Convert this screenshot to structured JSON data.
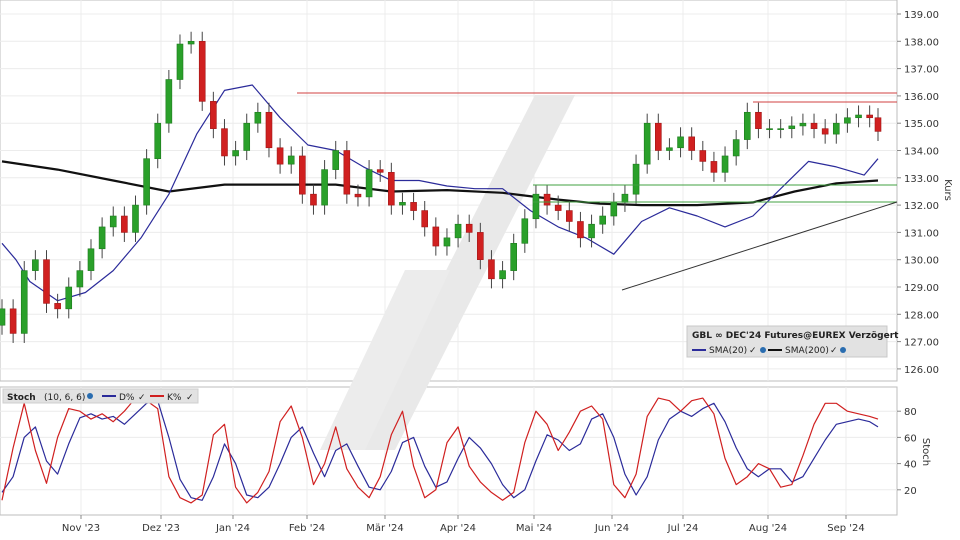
{
  "chart_data": [
    {
      "panel": "price",
      "type": "candlestick",
      "ylabel": "Kurs",
      "ylim": [
        125.5,
        139.5
      ],
      "yticks": [
        "126.00",
        "127.00",
        "128.00",
        "129.00",
        "130.00",
        "131.00",
        "132.00",
        "133.00",
        "134.00",
        "135.00",
        "136.00",
        "137.00",
        "138.00",
        "139.00"
      ],
      "xlabels": [
        "Nov '23",
        "Dez '23",
        "Jan '24",
        "Feb '24",
        "Mär '24",
        "Apr '24",
        "Mai '24",
        "Jun '24",
        "Jul '24",
        "Aug '24",
        "Sep '24"
      ],
      "legend": {
        "title": "GBL  ∞ DEC'24 Futures@EUREX Verzögert",
        "sma20": "SMA(20)",
        "sma200": "SMA(200)"
      },
      "series": [
        {
          "name": "SMA(20)",
          "color": "#2b2b9a",
          "x": [
            0,
            5,
            10,
            20,
            30,
            40,
            50,
            60,
            70,
            80,
            90,
            100,
            110,
            120,
            130,
            140,
            150,
            160,
            170,
            180,
            190,
            200,
            210,
            220,
            230,
            240,
            250,
            260,
            270,
            280,
            290,
            300,
            310,
            315
          ],
          "values": [
            130.6,
            130.0,
            129.2,
            128.5,
            128.8,
            129.6,
            130.8,
            132.4,
            134.6,
            136.2,
            136.4,
            135.2,
            134.2,
            134.0,
            133.4,
            132.9,
            132.9,
            132.7,
            132.6,
            132.6,
            131.8,
            131.2,
            130.8,
            130.2,
            131.4,
            131.9,
            131.6,
            131.2,
            131.6,
            132.6,
            133.6,
            133.4,
            133.1,
            133.7
          ]
        },
        {
          "name": "SMA(200)",
          "color": "#111111",
          "x": [
            0,
            20,
            40,
            60,
            80,
            100,
            120,
            140,
            160,
            180,
            200,
            215,
            230,
            250,
            270,
            285,
            300,
            315
          ],
          "values": [
            133.6,
            133.3,
            132.9,
            132.5,
            132.75,
            132.75,
            132.75,
            132.5,
            132.55,
            132.45,
            132.2,
            132.05,
            132.0,
            132.0,
            132.1,
            132.5,
            132.8,
            132.9
          ]
        }
      ],
      "candles_close_x": [
        0,
        4,
        8,
        12,
        16,
        20,
        24,
        28,
        32,
        36,
        40,
        44,
        48,
        52,
        56,
        60,
        64,
        68,
        72,
        76,
        80,
        84,
        88,
        92,
        96,
        100,
        104,
        108,
        112,
        116,
        120,
        124,
        128,
        132,
        136,
        140,
        144,
        148,
        152,
        156,
        160,
        164,
        168,
        172,
        176,
        180,
        184,
        188,
        192,
        196,
        200,
        204,
        208,
        212,
        216,
        220,
        224,
        228,
        232,
        236,
        240,
        244,
        248,
        252,
        256,
        260,
        264,
        268,
        272,
        276,
        280,
        284,
        288,
        292,
        296,
        300,
        304,
        308,
        312,
        315
      ],
      "candles_close": [
        128.2,
        127.3,
        129.6,
        130.0,
        128.4,
        128.2,
        129.0,
        129.6,
        130.4,
        131.2,
        131.6,
        131.0,
        132.0,
        133.7,
        135.0,
        136.6,
        137.9,
        138.0,
        135.8,
        134.8,
        133.8,
        134.0,
        135.0,
        135.4,
        134.1,
        133.5,
        133.8,
        132.4,
        132.0,
        133.3,
        134.0,
        132.4,
        132.3,
        133.3,
        133.2,
        132.0,
        132.1,
        131.8,
        131.2,
        130.5,
        130.8,
        131.3,
        131.0,
        130.0,
        129.3,
        129.6,
        130.6,
        131.5,
        132.4,
        132.0,
        131.8,
        131.4,
        130.8,
        131.3,
        131.6,
        132.1,
        132.4,
        133.5,
        135.0,
        134.0,
        134.1,
        134.5,
        134.0,
        133.6,
        133.2,
        133.8,
        134.4,
        135.4,
        134.8,
        134.8,
        134.8,
        134.9,
        135.0,
        134.8,
        134.6,
        135.0,
        135.2,
        135.3,
        135.2,
        134.7
      ]
    },
    {
      "panel": "stoch",
      "type": "line",
      "title": "Stoch",
      "params": "(10, 6, 6)",
      "ylabel": "Stoch",
      "ylim": [
        0,
        100
      ],
      "yticks": [
        "20",
        "40",
        "60",
        "80"
      ],
      "series": [
        {
          "name": "D%",
          "color": "#2b2b9a",
          "x": [
            0,
            4,
            8,
            12,
            16,
            20,
            24,
            28,
            32,
            36,
            40,
            44,
            48,
            52,
            56,
            60,
            64,
            68,
            72,
            76,
            80,
            84,
            88,
            92,
            96,
            100,
            104,
            108,
            112,
            116,
            120,
            124,
            128,
            132,
            136,
            140,
            144,
            148,
            152,
            156,
            160,
            164,
            168,
            172,
            176,
            180,
            184,
            188,
            192,
            196,
            200,
            204,
            208,
            212,
            216,
            220,
            224,
            228,
            232,
            236,
            240,
            244,
            248,
            252,
            256,
            260,
            264,
            268,
            272,
            276,
            280,
            284,
            288,
            292,
            296,
            300,
            304,
            308,
            312,
            315
          ],
          "values": [
            18,
            30,
            60,
            68,
            42,
            32,
            55,
            75,
            78,
            74,
            76,
            70,
            78,
            86,
            88,
            60,
            28,
            14,
            12,
            30,
            55,
            40,
            16,
            14,
            22,
            40,
            60,
            68,
            48,
            30,
            50,
            55,
            38,
            22,
            20,
            34,
            56,
            60,
            38,
            22,
            26,
            44,
            60,
            52,
            40,
            24,
            14,
            20,
            42,
            62,
            58,
            50,
            55,
            74,
            78,
            60,
            32,
            16,
            30,
            58,
            74,
            80,
            76,
            82,
            86,
            72,
            52,
            36,
            30,
            36,
            36,
            26,
            30,
            44,
            58,
            70,
            72,
            74,
            72,
            68
          ]
        },
        {
          "name": "K%",
          "color": "#d02020",
          "x": [
            0,
            4,
            8,
            12,
            16,
            20,
            24,
            28,
            32,
            36,
            40,
            44,
            48,
            52,
            56,
            60,
            64,
            68,
            72,
            76,
            80,
            84,
            88,
            92,
            96,
            100,
            104,
            108,
            112,
            116,
            120,
            124,
            128,
            132,
            136,
            140,
            144,
            148,
            152,
            156,
            160,
            164,
            168,
            172,
            176,
            180,
            184,
            188,
            192,
            196,
            200,
            204,
            208,
            212,
            216,
            220,
            224,
            228,
            232,
            236,
            240,
            244,
            248,
            252,
            256,
            260,
            264,
            268,
            272,
            276,
            280,
            284,
            288,
            292,
            296,
            300,
            304,
            308,
            312,
            315
          ],
          "values": [
            12,
            52,
            86,
            50,
            25,
            60,
            82,
            80,
            74,
            78,
            72,
            80,
            90,
            88,
            82,
            30,
            14,
            10,
            16,
            62,
            70,
            22,
            10,
            18,
            34,
            72,
            84,
            60,
            24,
            40,
            68,
            36,
            22,
            14,
            30,
            62,
            80,
            38,
            14,
            20,
            56,
            68,
            38,
            26,
            18,
            12,
            18,
            56,
            80,
            70,
            50,
            64,
            80,
            84,
            74,
            24,
            14,
            32,
            76,
            90,
            88,
            80,
            88,
            90,
            78,
            44,
            24,
            30,
            40,
            36,
            22,
            24,
            46,
            70,
            86,
            86,
            80,
            78,
            76,
            74
          ]
        }
      ]
    }
  ]
}
